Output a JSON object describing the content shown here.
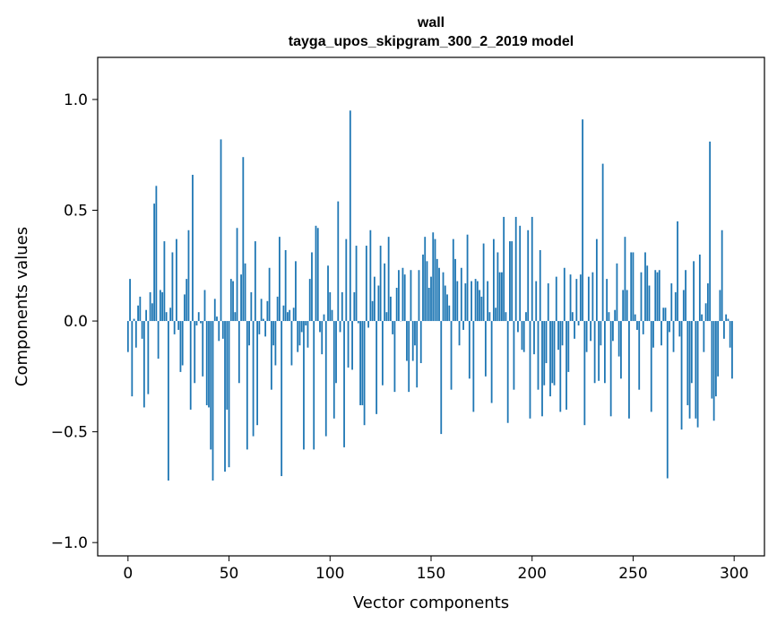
{
  "chart_data": {
    "type": "bar",
    "title": "wall",
    "subtitle": "tayga_upos_skipgram_300_2_2019 model",
    "xlabel": "Vector components",
    "ylabel": "Components values",
    "xlim": [
      -15,
      315
    ],
    "ylim": [
      -1.06,
      1.19
    ],
    "xticks": [
      0,
      50,
      100,
      150,
      200,
      250,
      300
    ],
    "xtick_labels": [
      "0",
      "50",
      "100",
      "150",
      "200",
      "250",
      "300"
    ],
    "yticks": [
      -1.0,
      -0.5,
      0.0,
      0.5,
      1.0
    ],
    "ytick_labels": [
      "−1.0",
      "−0.5",
      "0.0",
      "0.5",
      "1.0"
    ],
    "grid": false,
    "bar_color": "#1f77b4",
    "values": [
      -0.14,
      0.19,
      -0.34,
      0.01,
      -0.12,
      0.07,
      0.11,
      -0.08,
      -0.39,
      0.05,
      -0.33,
      0.13,
      0.08,
      0.53,
      0.61,
      -0.17,
      0.14,
      0.13,
      0.36,
      0.04,
      -0.72,
      0.06,
      0.31,
      -0.06,
      0.37,
      -0.04,
      -0.23,
      -0.2,
      0.12,
      0.19,
      0.41,
      -0.4,
      0.66,
      -0.28,
      -0.02,
      0.04,
      -0.01,
      -0.25,
      0.14,
      -0.38,
      -0.39,
      -0.58,
      -0.72,
      0.1,
      0.02,
      -0.09,
      0.82,
      -0.08,
      -0.68,
      -0.4,
      -0.66,
      0.19,
      0.18,
      0.04,
      0.42,
      -0.28,
      0.21,
      0.74,
      0.26,
      -0.58,
      -0.11,
      0.13,
      -0.52,
      0.36,
      -0.47,
      -0.06,
      0.1,
      0.01,
      -0.07,
      0.09,
      0.24,
      -0.31,
      -0.11,
      -0.2,
      0.11,
      0.38,
      -0.7,
      0.07,
      0.32,
      0.04,
      0.05,
      -0.2,
      0.06,
      0.27,
      -0.14,
      -0.11,
      -0.05,
      -0.58,
      -0.02,
      -0.12,
      0.19,
      0.31,
      -0.58,
      0.43,
      0.42,
      -0.05,
      -0.15,
      0.03,
      -0.52,
      0.25,
      0.13,
      0.05,
      -0.44,
      -0.28,
      0.54,
      -0.05,
      0.13,
      -0.57,
      0.37,
      -0.21,
      0.95,
      -0.22,
      0.13,
      0.34,
      -0.01,
      -0.38,
      -0.38,
      -0.47,
      0.34,
      -0.03,
      0.41,
      0.09,
      0.2,
      -0.42,
      0.16,
      0.34,
      -0.29,
      0.26,
      0.04,
      0.38,
      0.11,
      -0.06,
      -0.32,
      0.15,
      0.23,
      0.0,
      0.24,
      0.21,
      -0.18,
      -0.32,
      0.23,
      -0.18,
      -0.11,
      -0.3,
      0.23,
      -0.19,
      0.3,
      0.38,
      0.27,
      0.15,
      0.2,
      0.4,
      0.37,
      0.28,
      0.24,
      -0.51,
      0.22,
      0.16,
      0.12,
      0.07,
      -0.31,
      0.37,
      0.28,
      0.18,
      -0.11,
      0.24,
      -0.04,
      0.17,
      0.39,
      -0.26,
      0.18,
      -0.41,
      0.19,
      0.18,
      0.14,
      0.11,
      0.35,
      -0.25,
      0.18,
      0.04,
      -0.37,
      0.37,
      0.06,
      0.31,
      0.22,
      0.22,
      0.47,
      0.04,
      -0.46,
      0.36,
      0.36,
      -0.31,
      0.47,
      -0.05,
      0.43,
      -0.13,
      -0.14,
      0.04,
      0.41,
      -0.44,
      0.47,
      -0.15,
      0.18,
      -0.31,
      0.32,
      -0.43,
      -0.29,
      -0.19,
      0.17,
      -0.34,
      -0.28,
      -0.29,
      0.2,
      -0.13,
      -0.41,
      -0.11,
      0.24,
      -0.4,
      -0.23,
      0.21,
      0.04,
      -0.08,
      0.19,
      -0.02,
      0.21,
      0.91,
      -0.47,
      -0.14,
      0.2,
      -0.09,
      0.22,
      -0.28,
      0.37,
      -0.27,
      -0.11,
      0.71,
      -0.28,
      0.19,
      0.04,
      -0.43,
      -0.09,
      0.05,
      0.26,
      -0.16,
      -0.26,
      0.14,
      0.38,
      0.14,
      -0.44,
      0.31,
      0.31,
      0.03,
      -0.04,
      -0.31,
      0.22,
      -0.06,
      0.31,
      0.25,
      0.16,
      -0.41,
      -0.12,
      0.23,
      0.22,
      0.23,
      -0.11,
      0.06,
      0.06,
      -0.71,
      -0.05,
      0.17,
      -0.14,
      0.13,
      0.45,
      -0.07,
      -0.49,
      0.14,
      0.23,
      -0.38,
      -0.44,
      -0.28,
      0.27,
      -0.44,
      -0.48,
      0.3,
      0.03,
      -0.14,
      0.08,
      0.17,
      0.81,
      -0.35,
      -0.45,
      -0.34,
      -0.25,
      0.14,
      0.41,
      -0.08,
      0.03,
      0.01,
      -0.12,
      -0.26
    ]
  }
}
